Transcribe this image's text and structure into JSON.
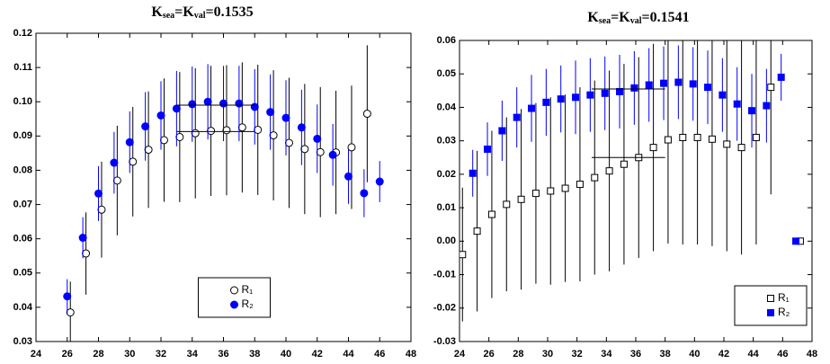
{
  "chart_data": [
    {
      "type": "scatter",
      "title": [
        "K",
        "sea",
        "=K",
        "val",
        "=0.1535"
      ],
      "xlim": [
        24,
        48
      ],
      "xticks": [
        24,
        26,
        28,
        30,
        32,
        34,
        36,
        38,
        40,
        42,
        44,
        46,
        48
      ],
      "ylim": [
        0.03,
        0.12
      ],
      "yticks": [
        0.03,
        0.04,
        0.05,
        0.06,
        0.07,
        0.08,
        0.09,
        {
          "value": 0.1,
          "label": "0.10"
        },
        0.11,
        0.12
      ],
      "legend": "lower-center",
      "series": [
        {
          "name": "R₁",
          "color": "#000000",
          "marker": "circle",
          "filled": false,
          "x": [
            26.2,
            27.2,
            28.2,
            29.2,
            30.2,
            31.2,
            32.2,
            33.2,
            34.2,
            35.2,
            36.2,
            37.2,
            38.2,
            39.2,
            40.2,
            41.2,
            42.2,
            43.2,
            44.2,
            45.2
          ],
          "values": [
            0.0385,
            0.0557,
            0.0685,
            0.077,
            0.0825,
            0.086,
            0.0888,
            0.0897,
            0.0908,
            0.0915,
            0.0917,
            0.0925,
            0.0918,
            0.0902,
            0.088,
            0.0862,
            0.0853,
            0.0852,
            0.0867,
            0.0965
          ],
          "errors": [
            0.009,
            0.012,
            0.014,
            0.016,
            0.016,
            0.017,
            0.018,
            0.019,
            0.019,
            0.019,
            0.019,
            0.019,
            0.019,
            0.019,
            0.019,
            0.019,
            0.019,
            0.018,
            0.018,
            0.02
          ],
          "fit": {
            "x": [
              33,
              38
            ],
            "value": 0.0913
          }
        },
        {
          "name": "R₂",
          "color": "#0000ff",
          "marker": "circle",
          "filled": true,
          "x": [
            26,
            27,
            28,
            29,
            30,
            31,
            32,
            33,
            34,
            35,
            36,
            37,
            38,
            39,
            40,
            41,
            42,
            43,
            44,
            45,
            46
          ],
          "values": [
            0.0432,
            0.0603,
            0.0732,
            0.0822,
            0.0882,
            0.0928,
            0.096,
            0.098,
            0.0993,
            0.1,
            0.0995,
            0.0995,
            0.0985,
            0.097,
            0.0953,
            0.0925,
            0.0892,
            0.0845,
            0.0782,
            0.0733,
            0.0767
          ],
          "errors": [
            0.005,
            0.006,
            0.008,
            0.009,
            0.009,
            0.01,
            0.01,
            0.011,
            0.011,
            0.011,
            0.011,
            0.011,
            0.011,
            0.011,
            0.011,
            0.011,
            0.01,
            0.009,
            0.008,
            0.007,
            0.006
          ],
          "fit": {
            "x": [
              33,
              38
            ],
            "value": 0.099
          }
        }
      ]
    },
    {
      "type": "scatter",
      "title": [
        "K",
        "sea",
        "=K",
        "val",
        "=0.1541"
      ],
      "xlim": [
        24,
        48
      ],
      "xticks": [
        24,
        26,
        28,
        30,
        32,
        34,
        36,
        38,
        40,
        42,
        44,
        46,
        48
      ],
      "ylim": [
        -0.03,
        0.06
      ],
      "yticks": [
        -0.03,
        -0.02,
        -0.01,
        {
          "value": 0,
          "label": "0.00"
        },
        0.01,
        0.02,
        0.03,
        0.04,
        0.05,
        0.06
      ],
      "legend": "lower-right",
      "series": [
        {
          "name": "R₁",
          "color": "#000000",
          "marker": "square",
          "filled": false,
          "x": [
            24.2,
            25.2,
            26.2,
            27.2,
            28.2,
            29.2,
            30.2,
            31.2,
            32.2,
            33.2,
            34.2,
            35.2,
            36.2,
            37.2,
            38.2,
            39.2,
            40.2,
            41.2,
            42.2,
            43.2,
            44.2,
            45.2,
            47.2
          ],
          "values": [
            -0.004,
            0.003,
            0.008,
            0.011,
            0.0125,
            0.0143,
            0.015,
            0.0158,
            0.017,
            0.019,
            0.021,
            0.023,
            0.025,
            0.028,
            0.0303,
            0.031,
            0.031,
            0.0305,
            0.029,
            0.028,
            0.031,
            0.046,
            0
          ],
          "errors": [
            0.02,
            0.024,
            0.025,
            0.026,
            0.027,
            0.027,
            0.028,
            0.028,
            0.029,
            0.029,
            0.03,
            0.03,
            0.03,
            0.031,
            0.031,
            0.032,
            0.032,
            0.032,
            0.032,
            0.032,
            0.032,
            0.032,
            0
          ],
          "fit": {
            "x": [
              33,
              38
            ],
            "value": 0.025
          }
        },
        {
          "name": "R₂",
          "color": "#0000ff",
          "marker": "square",
          "filled": true,
          "x": [
            24.9,
            25.9,
            26.9,
            27.9,
            28.9,
            29.9,
            30.9,
            31.9,
            32.9,
            33.9,
            34.9,
            35.9,
            36.9,
            37.9,
            38.9,
            39.9,
            40.9,
            41.9,
            42.9,
            43.9,
            44.9,
            45.9,
            46.9
          ],
          "values": [
            0.0203,
            0.0275,
            0.033,
            0.037,
            0.0397,
            0.0415,
            0.0425,
            0.043,
            0.0437,
            0.0442,
            0.0447,
            0.0458,
            0.0467,
            0.0472,
            0.0475,
            0.047,
            0.046,
            0.0437,
            0.041,
            0.039,
            0.0405,
            0.049,
            0
          ],
          "errors": [
            0.007,
            0.008,
            0.009,
            0.009,
            0.01,
            0.01,
            0.01,
            0.011,
            0.011,
            0.011,
            0.011,
            0.011,
            0.011,
            0.011,
            0.011,
            0.011,
            0.011,
            0.011,
            0.011,
            0.011,
            0.011,
            0.007,
            0
          ],
          "fit": {
            "x": [
              33,
              38
            ],
            "value": 0.0455
          }
        }
      ]
    }
  ]
}
